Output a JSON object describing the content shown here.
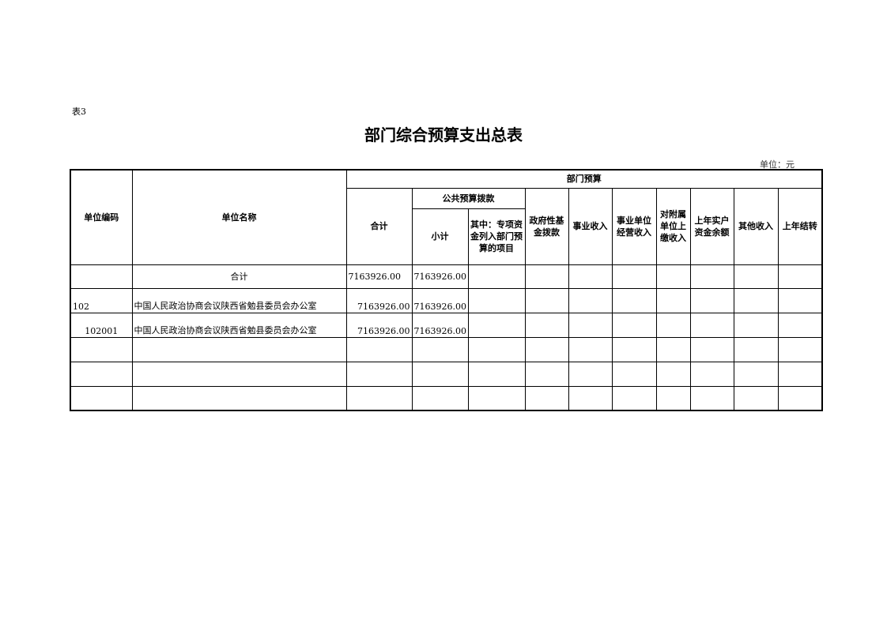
{
  "table_tag": "表3",
  "title": "部门综合预算支出总表",
  "unit": "单位：元",
  "headers": {
    "code": "单位编码",
    "name": "单位名称",
    "dept_budget": "部门预算",
    "total": "合计",
    "public_budget": "公共预算拨款",
    "subtotal": "小计",
    "special": "其中：专项资金列入部门预算的项目",
    "gov_fund": "政府性基金拨款",
    "business_income": "事业收入",
    "operating_income": "事业单位经营收入",
    "affiliated_income": "对附属单位上缴收入",
    "prior_balance": "上年实户资金余额",
    "other_income": "其他收入",
    "carryover": "上年结转"
  },
  "total_row": {
    "label": "合计",
    "total": "7163926.00",
    "subtotal": "7163926.00"
  },
  "rows": [
    {
      "code": "102",
      "name": "中国人民政治协商会议陕西省勉县委员会办公室",
      "total": "7163926.00",
      "subtotal": "7163926.00"
    },
    {
      "code": "102001",
      "name": "中国人民政治协商会议陕西省勉县委员会办公室",
      "total": "7163926.00",
      "subtotal": "7163926.00"
    }
  ]
}
